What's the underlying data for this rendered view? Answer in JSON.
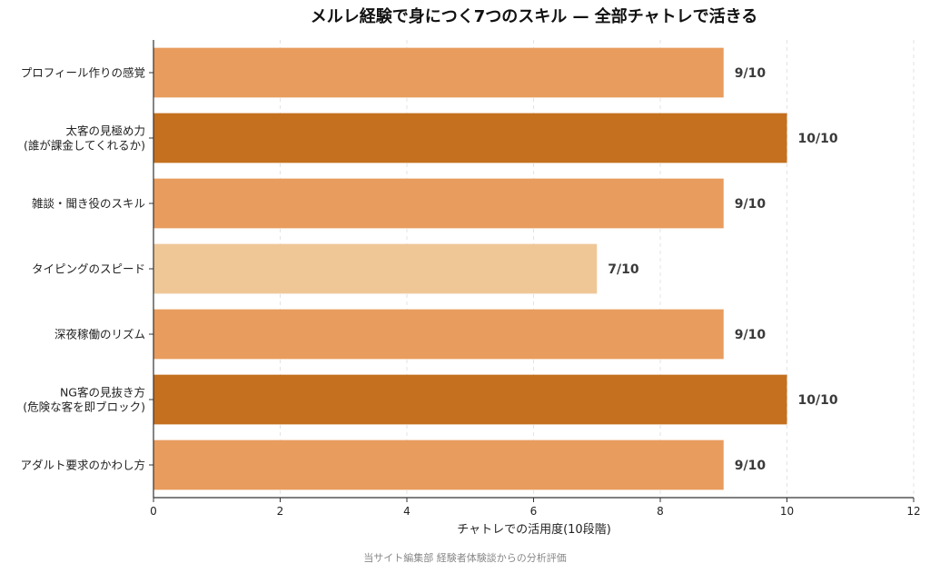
{
  "chart_data": {
    "type": "bar",
    "orientation": "horizontal",
    "title": "メルレ経験で身につく7つのスキル — 全部チャトレで活きる",
    "xlabel": "チャトレでの活用度(10段階)",
    "ylabel": "",
    "xlim": [
      0,
      12
    ],
    "xticks": [
      0,
      2,
      4,
      6,
      8,
      10,
      12
    ],
    "grid": "x-dashed",
    "categories": [
      [
        "プロフィール作りの感覚"
      ],
      [
        "太客の見極め力",
        "(誰が課金してくれるか)"
      ],
      [
        "雑談・聞き役のスキル"
      ],
      [
        "タイピングのスピード"
      ],
      [
        "深夜稼働のリズム"
      ],
      [
        "NG客の見抜き方",
        "(危険な客を即ブロック)"
      ],
      [
        "アダルト要求のかわし方"
      ]
    ],
    "values": [
      9,
      10,
      9,
      7,
      9,
      10,
      9
    ],
    "value_labels": [
      "9/10",
      "10/10",
      "9/10",
      "7/10",
      "9/10",
      "10/10",
      "9/10"
    ],
    "bar_colors": [
      "#E89C5E",
      "#C4701E",
      "#E89C5E",
      "#EFC797",
      "#E89C5E",
      "#C4701E",
      "#E89C5E"
    ],
    "source": "当サイト編集部 経験者体験談からの分析評価"
  }
}
